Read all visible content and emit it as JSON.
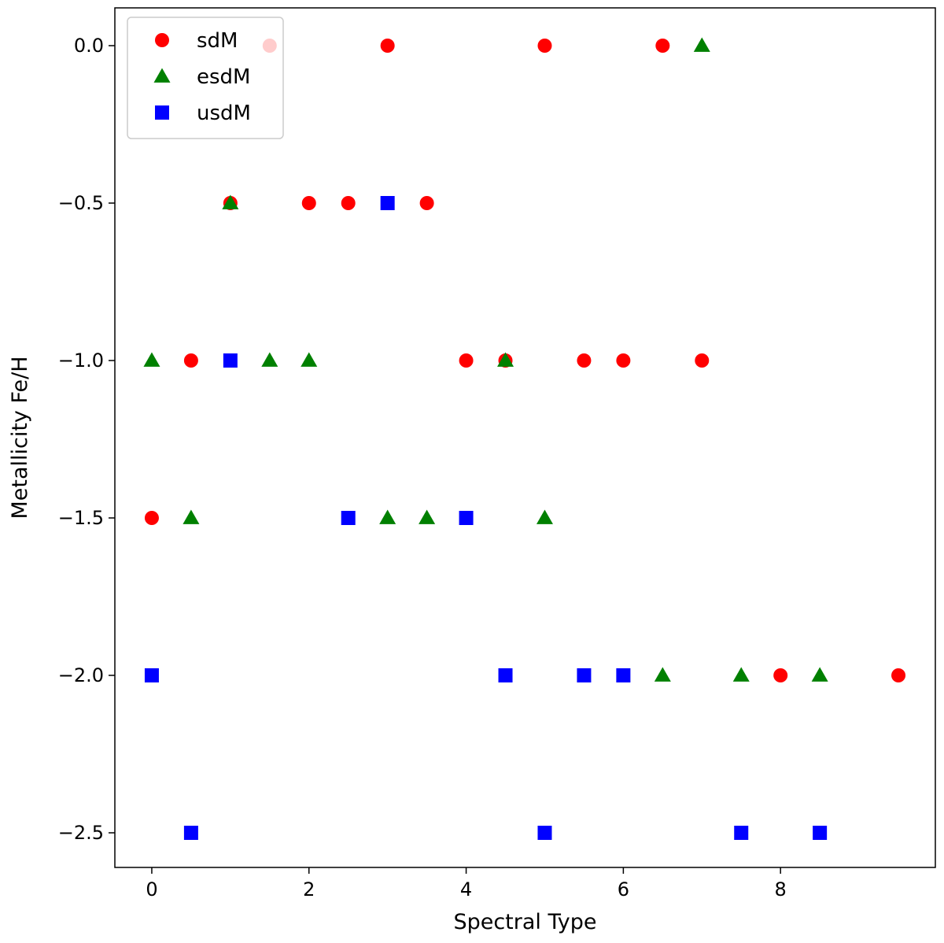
{
  "chart_data": {
    "type": "scatter",
    "title": "",
    "xlabel": "Spectral Type",
    "ylabel": "Metallicity Fe/H",
    "xlim": [
      -0.47,
      9.97
    ],
    "ylim": [
      -2.61,
      0.12
    ],
    "xticks": [
      0,
      2,
      4,
      6,
      8
    ],
    "yticks": [
      0.0,
      -0.5,
      -1.0,
      -1.5,
      -2.0,
      -2.5
    ],
    "xtick_labels": [
      "0",
      "2",
      "4",
      "6",
      "8"
    ],
    "ytick_labels": [
      "0.0",
      "−0.5",
      "−1.0",
      "−1.5",
      "−2.0",
      "−2.5"
    ],
    "grid": false,
    "legend_position": "top-left",
    "series": [
      {
        "name": "sdM",
        "marker": "circle",
        "color": "#ff0000",
        "points": [
          [
            1.5,
            0.0
          ],
          [
            3.0,
            0.0
          ],
          [
            5.0,
            0.0
          ],
          [
            6.5,
            0.0
          ],
          [
            1.0,
            -0.5
          ],
          [
            2.0,
            -0.5
          ],
          [
            2.5,
            -0.5
          ],
          [
            3.5,
            -0.5
          ],
          [
            0.5,
            -1.0
          ],
          [
            4.0,
            -1.0
          ],
          [
            4.5,
            -1.0
          ],
          [
            5.5,
            -1.0
          ],
          [
            6.0,
            -1.0
          ],
          [
            7.0,
            -1.0
          ],
          [
            0.0,
            -1.5
          ],
          [
            8.0,
            -2.0
          ],
          [
            9.5,
            -2.0
          ]
        ]
      },
      {
        "name": "esdM",
        "marker": "triangle",
        "color": "#008000",
        "points": [
          [
            7.0,
            0.0
          ],
          [
            1.0,
            -0.5
          ],
          [
            0.0,
            -1.0
          ],
          [
            1.5,
            -1.0
          ],
          [
            2.0,
            -1.0
          ],
          [
            4.5,
            -1.0
          ],
          [
            0.5,
            -1.5
          ],
          [
            3.0,
            -1.5
          ],
          [
            3.5,
            -1.5
          ],
          [
            5.0,
            -1.5
          ],
          [
            6.5,
            -2.0
          ],
          [
            7.5,
            -2.0
          ],
          [
            8.5,
            -2.0
          ]
        ]
      },
      {
        "name": "usdM",
        "marker": "square",
        "color": "#0000ff",
        "points": [
          [
            3.0,
            -0.5
          ],
          [
            1.0,
            -1.0
          ],
          [
            2.5,
            -1.5
          ],
          [
            4.0,
            -1.5
          ],
          [
            0.0,
            -2.0
          ],
          [
            4.5,
            -2.0
          ],
          [
            5.5,
            -2.0
          ],
          [
            6.0,
            -2.0
          ],
          [
            0.5,
            -2.5
          ],
          [
            5.0,
            -2.5
          ],
          [
            7.5,
            -2.5
          ],
          [
            8.5,
            -2.5
          ]
        ]
      }
    ]
  }
}
